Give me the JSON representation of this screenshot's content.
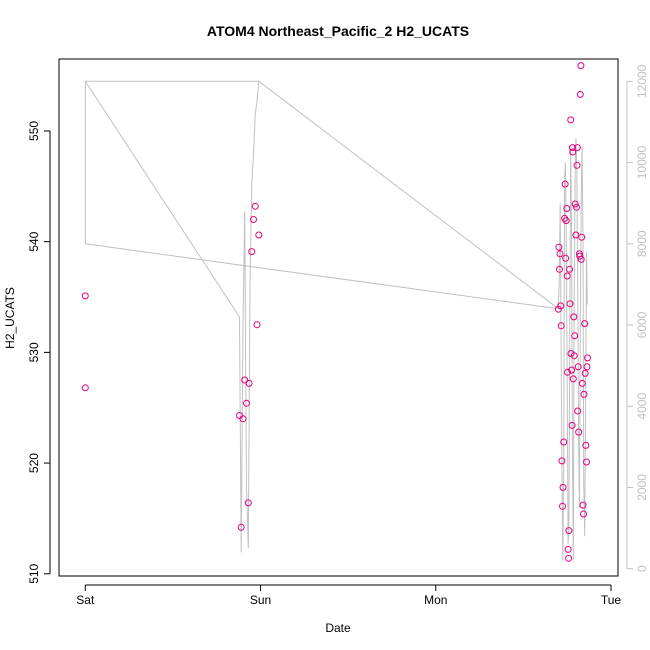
{
  "chart_data": {
    "type": "scatter",
    "title": "ATOM4 Northeast_Pacific_2 H2_UCATS",
    "xlabel": "Date",
    "ylabel": "H2_UCATS",
    "x_ticks": [
      {
        "label": "Sat",
        "value": 0
      },
      {
        "label": "Sun",
        "value": 1
      },
      {
        "label": "Mon",
        "value": 2
      },
      {
        "label": "Tue",
        "value": 3
      }
    ],
    "y_ticks": [
      510,
      520,
      530,
      540,
      550
    ],
    "y2_ticks": [
      0,
      2000,
      4000,
      6000,
      8000,
      10000,
      12000
    ],
    "xlim": [
      -0.15,
      3.04
    ],
    "ylim": [
      509.8,
      556.5
    ],
    "y2lim": [
      -180,
      12550
    ],
    "grid": false,
    "colors": {
      "points": "#e6007e",
      "altitude_line": "#c0c0c0",
      "right_axis": "#c0c0c0",
      "axis": "#000000"
    },
    "series": [
      {
        "axis": "left",
        "style": "points",
        "points": [
          [
            0.0,
            535.1
          ],
          [
            0.0,
            526.8
          ],
          [
            0.88,
            524.3
          ],
          [
            0.89,
            514.2
          ],
          [
            0.9,
            524.0
          ],
          [
            0.91,
            527.5
          ],
          [
            0.92,
            525.4
          ],
          [
            0.93,
            516.4
          ],
          [
            0.935,
            527.2
          ],
          [
            0.95,
            539.1
          ],
          [
            0.96,
            542.0
          ],
          [
            0.97,
            543.2
          ],
          [
            0.98,
            532.5
          ],
          [
            0.99,
            540.6
          ],
          [
            2.7,
            533.9
          ],
          [
            2.703,
            539.5
          ],
          [
            2.706,
            537.5
          ],
          [
            2.709,
            538.9
          ],
          [
            2.713,
            534.2
          ],
          [
            2.716,
            532.4
          ],
          [
            2.72,
            520.2
          ],
          [
            2.723,
            516.1
          ],
          [
            2.726,
            517.8
          ],
          [
            2.73,
            521.9
          ],
          [
            2.735,
            542.1
          ],
          [
            2.738,
            545.2
          ],
          [
            2.741,
            538.5
          ],
          [
            2.744,
            541.9
          ],
          [
            2.748,
            543.0
          ],
          [
            2.75,
            536.9
          ],
          [
            2.752,
            528.2
          ],
          [
            2.755,
            512.2
          ],
          [
            2.758,
            511.4
          ],
          [
            2.76,
            513.9
          ],
          [
            2.763,
            537.5
          ],
          [
            2.766,
            534.4
          ],
          [
            2.77,
            551.0
          ],
          [
            2.772,
            529.9
          ],
          [
            2.775,
            528.4
          ],
          [
            2.778,
            523.4
          ],
          [
            2.78,
            548.5
          ],
          [
            2.782,
            548.1
          ],
          [
            2.785,
            527.6
          ],
          [
            2.788,
            533.2
          ],
          [
            2.79,
            529.7
          ],
          [
            2.793,
            531.5
          ],
          [
            2.796,
            543.4
          ],
          [
            2.8,
            540.6
          ],
          [
            2.803,
            543.1
          ],
          [
            2.806,
            546.9
          ],
          [
            2.808,
            548.5
          ],
          [
            2.81,
            524.7
          ],
          [
            2.813,
            528.7
          ],
          [
            2.816,
            522.8
          ],
          [
            2.82,
            538.9
          ],
          [
            2.822,
            538.7
          ],
          [
            2.825,
            553.3
          ],
          [
            2.828,
            555.9
          ],
          [
            2.83,
            538.4
          ],
          [
            2.833,
            540.4
          ],
          [
            2.836,
            527.2
          ],
          [
            2.84,
            516.2
          ],
          [
            2.843,
            515.4
          ],
          [
            2.846,
            526.2
          ],
          [
            2.85,
            532.6
          ],
          [
            2.853,
            528.1
          ],
          [
            2.856,
            521.6
          ],
          [
            2.86,
            520.1
          ],
          [
            2.863,
            528.7
          ],
          [
            2.866,
            529.5
          ]
        ]
      },
      {
        "axis": "right",
        "style": "line",
        "points": [
          [
            0.0,
            12000
          ],
          [
            0.0,
            8000
          ],
          [
            2.7,
            6400
          ],
          [
            0.99,
            12000
          ],
          [
            0.0,
            12000
          ],
          [
            0.88,
            6200
          ],
          [
            0.89,
            400
          ],
          [
            0.9,
            6000
          ],
          [
            0.91,
            8800
          ],
          [
            0.92,
            2000
          ],
          [
            0.93,
            500
          ],
          [
            0.94,
            7000
          ],
          [
            0.95,
            9500
          ],
          [
            0.96,
            10200
          ],
          [
            0.97,
            11200
          ],
          [
            0.98,
            11500
          ],
          [
            0.99,
            12000
          ],
          [
            2.7,
            6400
          ],
          [
            2.705,
            7200
          ],
          [
            2.71,
            9000
          ],
          [
            2.715,
            6000
          ],
          [
            2.72,
            2500
          ],
          [
            2.725,
            200
          ],
          [
            2.73,
            2600
          ],
          [
            2.735,
            9600
          ],
          [
            2.74,
            10000
          ],
          [
            2.745,
            8000
          ],
          [
            2.75,
            4500
          ],
          [
            2.755,
            600
          ],
          [
            2.76,
            1200
          ],
          [
            2.765,
            6000
          ],
          [
            2.77,
            10400
          ],
          [
            2.775,
            8200
          ],
          [
            2.78,
            3000
          ],
          [
            2.785,
            200
          ],
          [
            2.79,
            6500
          ],
          [
            2.795,
            9600
          ],
          [
            2.8,
            10600
          ],
          [
            2.805,
            9800
          ],
          [
            2.81,
            7000
          ],
          [
            2.815,
            3200
          ],
          [
            2.82,
            1500
          ],
          [
            2.825,
            6000
          ],
          [
            2.83,
            9000
          ],
          [
            2.835,
            10400
          ],
          [
            2.84,
            8000
          ],
          [
            2.845,
            2000
          ],
          [
            2.85,
            800
          ],
          [
            2.855,
            4000
          ],
          [
            2.86,
            7800
          ],
          [
            2.865,
            6500
          ]
        ]
      }
    ]
  }
}
